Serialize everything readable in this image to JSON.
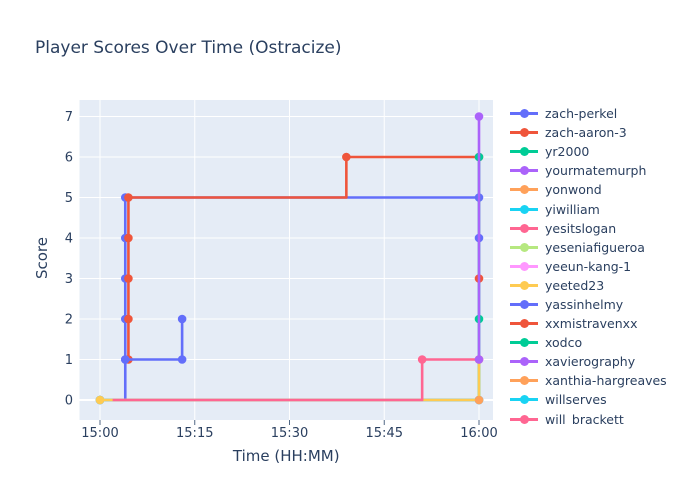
{
  "title": "Player Scores Over Time (Ostracize)",
  "chart_data": {
    "type": "line",
    "line_shape": "hv-step",
    "title": "Player Scores Over Time (Ostracize)",
    "xlabel": "Time (HH:MM)",
    "ylabel": "Score",
    "x_ticks": [
      "15:00",
      "15:15",
      "15:30",
      "15:45",
      "16:00"
    ],
    "x_tick_minutes": [
      0,
      15,
      30,
      45,
      60
    ],
    "y_ticks": [
      0,
      1,
      2,
      3,
      4,
      5,
      6,
      7
    ],
    "x_range_minutes": [
      0,
      60
    ],
    "ylim": [
      0,
      7
    ],
    "grid": true,
    "legend_position": "right",
    "plot_bg_color": "#E5ECF6",
    "grid_color": "#FFFFFF",
    "text_color": "#2a3f5f",
    "legend": [
      {
        "label": "zach-perkel",
        "color": "#636EFA"
      },
      {
        "label": "zach-aaron-3",
        "color": "#EF553B"
      },
      {
        "label": "yr2000",
        "color": "#00CC96"
      },
      {
        "label": "yourmatemurph",
        "color": "#AB63FA"
      },
      {
        "label": "yonwond",
        "color": "#FFA15A"
      },
      {
        "label": "yiwilliam",
        "color": "#19D3F3"
      },
      {
        "label": "yesitslogan",
        "color": "#FF6692"
      },
      {
        "label": "yeseniafigueroa",
        "color": "#B6E880"
      },
      {
        "label": "yeeun-kang-1",
        "color": "#FF97FF"
      },
      {
        "label": "yeeted23",
        "color": "#FECB52"
      },
      {
        "label": "yassinhelmy",
        "color": "#636EFA"
      },
      {
        "label": "xxmistravenxx",
        "color": "#EF553B"
      },
      {
        "label": "xodco",
        "color": "#00CC96"
      },
      {
        "label": "xavierography",
        "color": "#AB63FA"
      },
      {
        "label": "xanthia-hargreaves",
        "color": "#FFA15A"
      },
      {
        "label": "willserves",
        "color": "#19D3F3"
      },
      {
        "label": "will_brackett",
        "color": "#FF6692"
      }
    ],
    "series": [
      {
        "name": "zach-perkel",
        "color": "#636EFA",
        "markers": true,
        "points": [
          [
            0,
            0
          ],
          [
            4,
            1
          ],
          [
            4,
            2
          ],
          [
            4,
            3
          ],
          [
            4,
            4
          ],
          [
            4,
            5
          ],
          [
            60,
            5
          ]
        ]
      },
      {
        "name": "zach-aaron-3",
        "color": "#EF553B",
        "markers": true,
        "points": [
          [
            4.5,
            1
          ],
          [
            4.5,
            2
          ],
          [
            4.5,
            3
          ],
          [
            4.5,
            4
          ],
          [
            4.5,
            5
          ],
          [
            39,
            6
          ],
          [
            60,
            6
          ]
        ]
      },
      {
        "name": "yr2000",
        "color": "#00CC96",
        "markers": true,
        "points": [
          [
            0,
            0
          ],
          [
            60,
            6
          ]
        ]
      },
      {
        "name": "yourmatemurph",
        "color": "#AB63FA",
        "markers": true,
        "points": [
          [
            0,
            0
          ],
          [
            60,
            0
          ]
        ]
      },
      {
        "name": "yonwond",
        "color": "#FFA15A",
        "markers": true,
        "points": [
          [
            0,
            0
          ],
          [
            60,
            0
          ]
        ]
      },
      {
        "name": "yiwilliam",
        "color": "#19D3F3",
        "markers": true,
        "points": [
          [
            0,
            0
          ],
          [
            60,
            0
          ]
        ]
      },
      {
        "name": "yeseniafigueroa",
        "color": "#B6E880",
        "markers": true,
        "points": [
          [
            0,
            0
          ],
          [
            60,
            0
          ]
        ]
      },
      {
        "name": "yeeun-kang-1",
        "color": "#FF97FF",
        "markers": true,
        "points": [
          [
            0,
            0
          ],
          [
            60,
            0
          ]
        ]
      },
      {
        "name": "willserves",
        "color": "#19D3F3",
        "markers": true,
        "points": [
          [
            0,
            0
          ],
          [
            60,
            0
          ]
        ]
      },
      {
        "name": "yassinhelmy",
        "color": "#636EFA",
        "markers": true,
        "points": [
          [
            4,
            1
          ],
          [
            13,
            1
          ],
          [
            13,
            2
          ]
        ]
      },
      {
        "name": "yeeted23",
        "color": "#FECB52",
        "markers": true,
        "points": [
          [
            0,
            0
          ],
          [
            60,
            1
          ]
        ]
      },
      {
        "name": "will_brackett",
        "color": "#FF6692",
        "markers": false,
        "points": [
          [
            2,
            0
          ],
          [
            51,
            1
          ]
        ]
      },
      {
        "name": "yesitslogan",
        "color": "#FF6692",
        "markers": true,
        "points": [
          [
            51,
            1
          ],
          [
            60,
            1
          ]
        ]
      },
      {
        "name": "xxmistravenxx",
        "color": "#EF553B",
        "markers": true,
        "points": [
          [
            60,
            3
          ]
        ]
      },
      {
        "name": "xodco",
        "color": "#00CC96",
        "markers": true,
        "points": [
          [
            60,
            2
          ]
        ]
      },
      {
        "name": "",
        "color": "#636EFA",
        "markers": true,
        "points": [
          [
            60,
            4
          ]
        ]
      },
      {
        "name": "xavierography",
        "color": "#AB63FA",
        "markers": true,
        "points": [
          [
            60,
            1
          ],
          [
            60,
            7
          ]
        ]
      },
      {
        "name": "xanthia-hargreaves",
        "color": "#FFA15A",
        "markers": true,
        "points": [
          [
            60,
            0
          ]
        ]
      }
    ]
  }
}
